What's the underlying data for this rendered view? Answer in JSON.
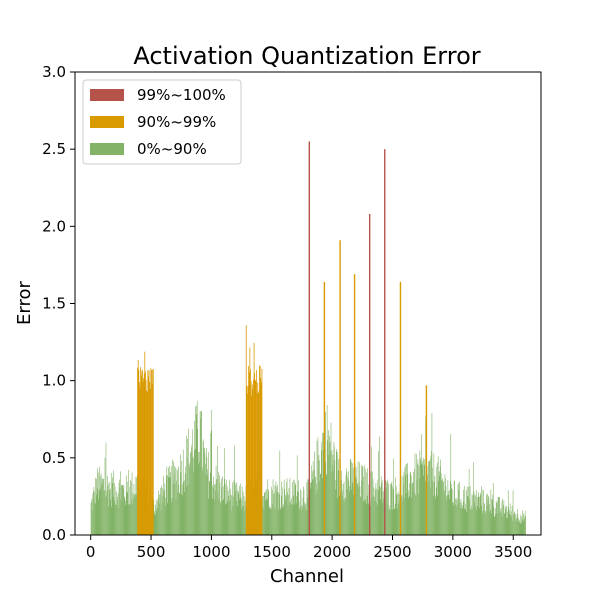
{
  "chart_data": {
    "type": "bar",
    "title": "Activation Quantization Error",
    "xlabel": "Channel",
    "ylabel": "Error",
    "xlim": [
      -130,
      3730
    ],
    "ylim": [
      0,
      3.0
    ],
    "grid": false,
    "legend_position": "top-left",
    "x_ticks": [
      0,
      500,
      1000,
      1500,
      2000,
      2500,
      3000,
      3500
    ],
    "x_tick_labels": [
      "0",
      "500",
      "1000",
      "1500",
      "2000",
      "2500",
      "3000",
      "3500"
    ],
    "y_ticks": [
      0.0,
      0.5,
      1.0,
      1.5,
      2.0,
      2.5,
      3.0
    ],
    "y_tick_labels": [
      "0.0",
      "0.5",
      "1.0",
      "1.5",
      "2.0",
      "2.5",
      "3.0"
    ],
    "series": [
      {
        "name": "99%~100%",
        "color": "#b5534b",
        "x": [
          1810,
          2310,
          2435
        ],
        "values": [
          2.55,
          2.08,
          2.5
        ]
      },
      {
        "name": "90%~99%",
        "color": "#d99a00",
        "x": [
          1935,
          2065,
          2185,
          2565,
          2780
        ],
        "values": [
          1.64,
          1.91,
          1.69,
          1.64,
          0.97
        ],
        "bands": [
          {
            "start": 385,
            "end": 515,
            "peak": 1.25
          },
          {
            "start": 1285,
            "end": 1415,
            "peak": 1.51
          }
        ]
      },
      {
        "name": "0%~90%",
        "color": "#82b366",
        "x_range": [
          0,
          3600
        ],
        "profile": [
          [
            0,
            0.2
          ],
          [
            50,
            0.35
          ],
          [
            300,
            0.3
          ],
          [
            380,
            0.35
          ],
          [
            520,
            0.2
          ],
          [
            600,
            0.3
          ],
          [
            750,
            0.45
          ],
          [
            900,
            0.72
          ],
          [
            950,
            0.45
          ],
          [
            1100,
            0.3
          ],
          [
            1270,
            0.25
          ],
          [
            1420,
            0.3
          ],
          [
            1800,
            0.28
          ],
          [
            1950,
            0.7
          ],
          [
            2050,
            0.4
          ],
          [
            2200,
            0.38
          ],
          [
            2350,
            0.32
          ],
          [
            2500,
            0.28
          ],
          [
            2700,
            0.42
          ],
          [
            2850,
            0.42
          ],
          [
            3000,
            0.28
          ],
          [
            3300,
            0.22
          ],
          [
            3600,
            0.12
          ]
        ]
      }
    ]
  }
}
